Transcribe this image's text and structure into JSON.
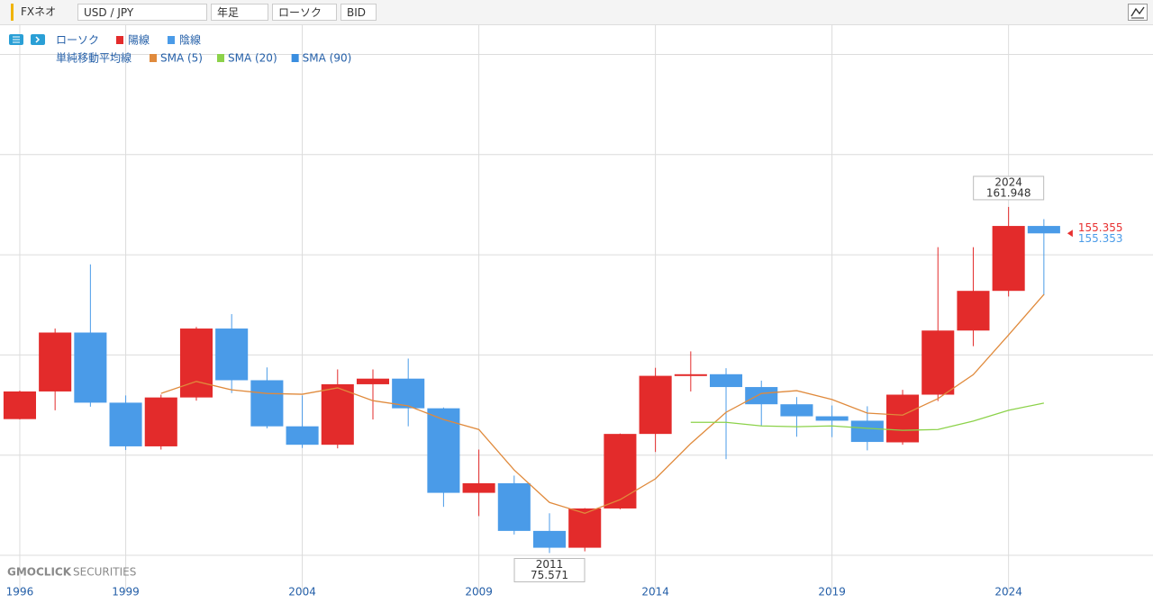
{
  "toolbar": {
    "brand": "FXネオ",
    "pair": "USD / JPY",
    "period": "年足",
    "chart_kind": "ローソク",
    "price_side": "BID"
  },
  "watermark": {
    "name": "GMOCLICK",
    "suffix": "SECURITIES"
  },
  "chart_data": {
    "type": "candlestick",
    "legend": {
      "candle": "ローソク",
      "up": "陽線",
      "down": "陰線",
      "ma_title": "単純移動平均線"
    },
    "up_color": "#e32b2b",
    "down_color": "#4a9be8",
    "x": [
      1996,
      1997,
      1998,
      1999,
      2000,
      2001,
      2002,
      2003,
      2004,
      2005,
      2006,
      2007,
      2008,
      2009,
      2010,
      2011,
      2012,
      2013,
      2014,
      2015,
      2016,
      2017,
      2018,
      2019,
      2020,
      2021,
      2022,
      2023,
      2024,
      2025
    ],
    "open": [
      109.0,
      115.9,
      130.6,
      113.1,
      102.2,
      114.4,
      131.6,
      118.7,
      107.2,
      102.6,
      117.7,
      119.1,
      111.7,
      90.6,
      93.0,
      81.1,
      76.9,
      86.7,
      105.3,
      119.8,
      120.2,
      117.0,
      112.7,
      109.7,
      108.6,
      103.2,
      115.1,
      131.1,
      141.0,
      157.2
    ],
    "high": [
      116.1,
      131.6,
      147.6,
      114.9,
      115.1,
      132.0,
      135.2,
      121.9,
      114.9,
      121.4,
      121.4,
      124.1,
      111.9,
      101.4,
      94.9,
      85.5,
      86.8,
      105.4,
      121.8,
      125.9,
      121.7,
      118.6,
      114.5,
      112.4,
      112.2,
      116.3,
      151.9,
      151.9,
      161.948,
      158.9
    ],
    "low": [
      108.9,
      111.2,
      112.1,
      101.3,
      101.4,
      113.6,
      115.5,
      106.7,
      101.8,
      101.7,
      108.9,
      107.2,
      87.1,
      84.8,
      80.2,
      75.571,
      76.0,
      86.5,
      100.8,
      115.9,
      99.0,
      107.3,
      104.6,
      104.5,
      101.2,
      102.6,
      113.5,
      127.2,
      139.6,
      139.9
    ],
    "close": [
      115.9,
      130.6,
      113.1,
      102.2,
      114.4,
      131.6,
      118.7,
      107.2,
      102.6,
      117.7,
      119.1,
      111.7,
      90.6,
      93.0,
      81.1,
      76.9,
      86.7,
      105.3,
      119.8,
      120.2,
      117.0,
      112.7,
      109.7,
      108.6,
      103.3,
      115.1,
      131.1,
      141.0,
      157.2,
      155.353
    ],
    "series": [
      {
        "name": "SMA (5)",
        "color": "#e08a3c",
        "values": [
          null,
          null,
          null,
          null,
          115.4,
          118.4,
          116.3,
          115.4,
          115.2,
          116.8,
          113.6,
          112.3,
          108.9,
          106.4,
          96.3,
          88.2,
          85.5,
          88.9,
          94.1,
          102.9,
          110.7,
          115.4,
          116.1,
          113.9,
          110.5,
          110.0,
          114.1,
          120.1,
          130.0,
          140.1
        ]
      },
      {
        "name": "SMA (20)",
        "color": "#8cd24a",
        "values": [
          null,
          null,
          null,
          null,
          null,
          null,
          null,
          null,
          null,
          null,
          null,
          null,
          null,
          null,
          null,
          null,
          null,
          null,
          null,
          108.2,
          108.2,
          107.3,
          107.1,
          107.3,
          106.7,
          106.2,
          106.4,
          108.5,
          111.2,
          113.0
        ]
      },
      {
        "name": "SMA (90)",
        "color": "#3a8ee0",
        "values": [
          null,
          null,
          null,
          null,
          null,
          null,
          null,
          null,
          null,
          null,
          null,
          null,
          null,
          null,
          null,
          null,
          null,
          null,
          null,
          null,
          null,
          null,
          null,
          null,
          null,
          null,
          null,
          null,
          null,
          null
        ]
      }
    ],
    "price_tags": [
      {
        "value": 155.355,
        "color": "#e83030"
      },
      {
        "value": 155.353,
        "color": "#4a9be8"
      }
    ],
    "xlim": [
      1995.44,
      2028.09
    ],
    "xticks": [
      1996,
      1999,
      2004,
      2009,
      2014,
      2019,
      2024
    ],
    "ylim": [
      67.6,
      206.85
    ],
    "ygrid": [
      75,
      100,
      125,
      150,
      175,
      200
    ]
  }
}
